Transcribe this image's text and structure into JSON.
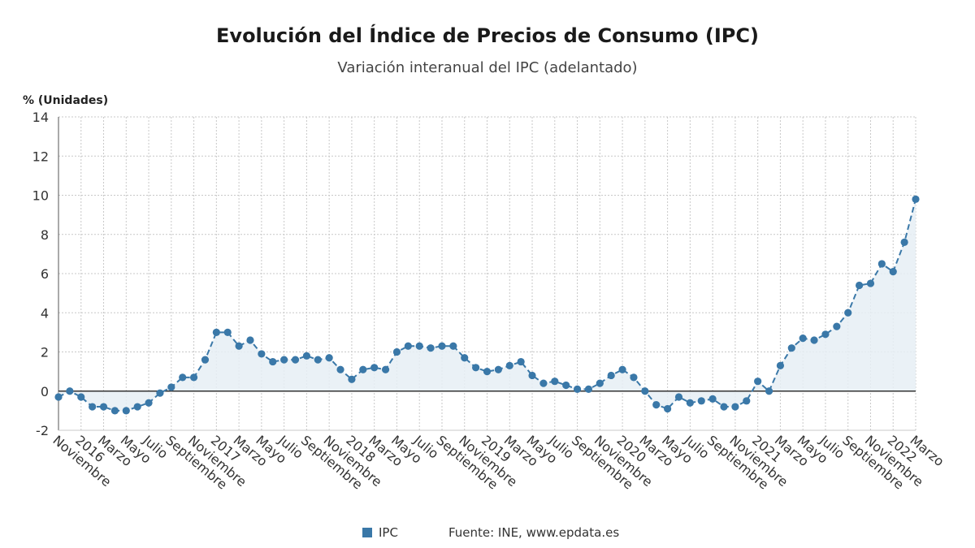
{
  "chart_data": {
    "type": "line",
    "title": "Evolución del Índice de Precios de Consumo (IPC)",
    "subtitle": "Variación interanual del IPC (adelantado)",
    "ylabel": "% (Unidades)",
    "xlabel": "",
    "ylim": [
      -2,
      14
    ],
    "yticks": [
      -2,
      0,
      2,
      4,
      6,
      8,
      10,
      12,
      14
    ],
    "grid": true,
    "legend_position": "bottom",
    "source": "Fuente: INE, www.epdata.es",
    "colors": {
      "line": "#3a78a8",
      "fill": "#e6eef5",
      "grid": "#c8c8c8",
      "zero": "#333333"
    },
    "x_tick_labels": [
      {
        "index": 0,
        "label": "Noviembre"
      },
      {
        "index": 2,
        "label": "2016"
      },
      {
        "index": 4,
        "label": "Marzo"
      },
      {
        "index": 6,
        "label": "Mayo"
      },
      {
        "index": 8,
        "label": "Julio"
      },
      {
        "index": 10,
        "label": "Septiembre"
      },
      {
        "index": 12,
        "label": "Noviembre"
      },
      {
        "index": 14,
        "label": "2017"
      },
      {
        "index": 16,
        "label": "Marzo"
      },
      {
        "index": 18,
        "label": "Mayo"
      },
      {
        "index": 20,
        "label": "Julio"
      },
      {
        "index": 22,
        "label": "Septiembre"
      },
      {
        "index": 24,
        "label": "Noviembre"
      },
      {
        "index": 26,
        "label": "2018"
      },
      {
        "index": 28,
        "label": "Marzo"
      },
      {
        "index": 30,
        "label": "Mayo"
      },
      {
        "index": 32,
        "label": "Julio"
      },
      {
        "index": 34,
        "label": "Septiembre"
      },
      {
        "index": 36,
        "label": "Noviembre"
      },
      {
        "index": 38,
        "label": "2019"
      },
      {
        "index": 40,
        "label": "Marzo"
      },
      {
        "index": 42,
        "label": "Mayo"
      },
      {
        "index": 44,
        "label": "Julio"
      },
      {
        "index": 46,
        "label": "Septiembre"
      },
      {
        "index": 48,
        "label": "Noviembre"
      },
      {
        "index": 50,
        "label": "2020"
      },
      {
        "index": 52,
        "label": "Marzo"
      },
      {
        "index": 54,
        "label": "Mayo"
      },
      {
        "index": 56,
        "label": "Julio"
      },
      {
        "index": 58,
        "label": "Septiembre"
      },
      {
        "index": 60,
        "label": "Noviembre"
      },
      {
        "index": 62,
        "label": "2021"
      },
      {
        "index": 64,
        "label": "Marzo"
      },
      {
        "index": 66,
        "label": "Mayo"
      },
      {
        "index": 68,
        "label": "Julio"
      },
      {
        "index": 70,
        "label": "Septiembre"
      },
      {
        "index": 72,
        "label": "Noviembre"
      },
      {
        "index": 74,
        "label": "2022"
      },
      {
        "index": 76,
        "label": "Marzo"
      }
    ],
    "series": [
      {
        "name": "IPC",
        "values": [
          -0.3,
          0.0,
          -0.3,
          -0.8,
          -0.8,
          -1.0,
          -1.0,
          -0.8,
          -0.6,
          -0.1,
          0.2,
          0.7,
          0.7,
          1.6,
          3.0,
          3.0,
          2.3,
          2.6,
          1.9,
          1.5,
          1.6,
          1.6,
          1.8,
          1.6,
          1.7,
          1.1,
          0.6,
          1.1,
          1.2,
          1.1,
          2.0,
          2.3,
          2.3,
          2.2,
          2.3,
          2.3,
          1.7,
          1.2,
          1.0,
          1.1,
          1.3,
          1.5,
          0.8,
          0.4,
          0.5,
          0.3,
          0.1,
          0.1,
          0.4,
          0.8,
          1.1,
          0.7,
          0.0,
          -0.7,
          -0.9,
          -0.3,
          -0.6,
          -0.5,
          -0.4,
          -0.8,
          -0.8,
          -0.5,
          0.5,
          0.0,
          1.3,
          2.2,
          2.7,
          2.6,
          2.9,
          3.3,
          4.0,
          5.4,
          5.5,
          6.5,
          6.1,
          7.6,
          9.8
        ]
      }
    ]
  }
}
